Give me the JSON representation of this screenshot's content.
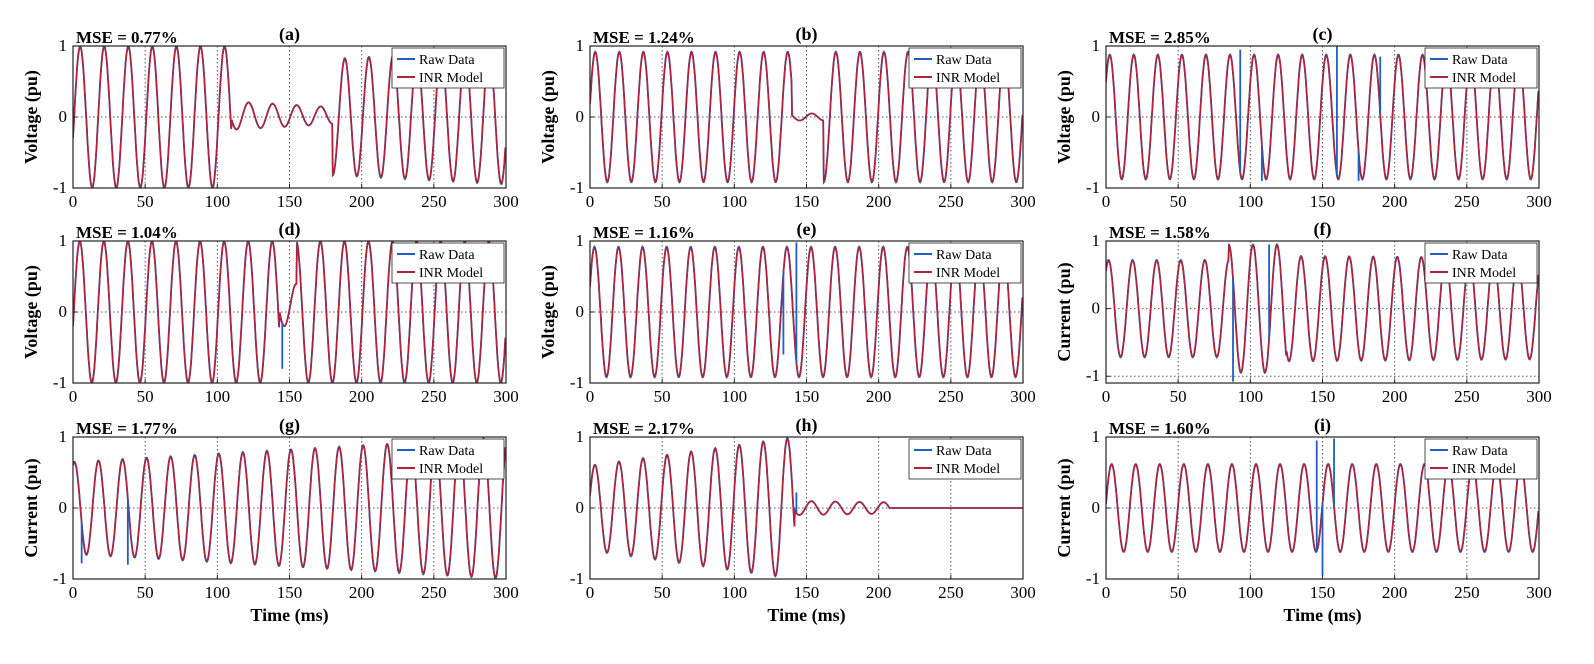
{
  "figure": {
    "xlabel": "Time (ms)",
    "legend": [
      "Raw Data",
      "INR Model"
    ],
    "colors": {
      "raw": "#1f5fbf",
      "model": "#b0233a",
      "grid": "#555555",
      "axis": "#222222"
    }
  },
  "chart_data": [
    {
      "type": "line",
      "id": "a",
      "title": "(a)",
      "annotation": "MSE = 0.77%",
      "ylabel": "Voltage (pu)",
      "xlabel": "",
      "xlim": [
        0,
        300
      ],
      "ylim": [
        -1,
        1
      ],
      "xticks": [
        "0",
        "50",
        "100",
        "150",
        "200",
        "250",
        "300"
      ],
      "yticks": [
        "-1",
        "0",
        "1"
      ],
      "legend": [
        "Raw Data",
        "INR Model"
      ],
      "legend_loc": "top-right",
      "grid": true,
      "series": [
        {
          "name": "Raw Data",
          "segments": [
            {
              "t0": 0,
              "t1": 110,
              "amp0": 1.0,
              "amp1": 1.0,
              "off": 0
            },
            {
              "t0": 110,
              "t1": 180,
              "amp0": 0.2,
              "amp1": 0.12,
              "off": 0.02
            },
            {
              "t0": 180,
              "t1": 300,
              "amp0": 0.82,
              "amp1": 0.95,
              "off": 0
            }
          ],
          "period": 16.67,
          "phase": -0.3,
          "spikes": []
        },
        {
          "name": "INR Model"
        }
      ]
    },
    {
      "type": "line",
      "id": "b",
      "title": "(b)",
      "annotation": "MSE = 1.24%",
      "ylabel": "Voltage (pu)",
      "xlabel": "",
      "xlim": [
        0,
        300
      ],
      "ylim": [
        -1,
        1
      ],
      "xticks": [
        "0",
        "50",
        "100",
        "150",
        "200",
        "250",
        "300"
      ],
      "yticks": [
        "-1",
        "0",
        "1"
      ],
      "legend": [
        "Raw Data",
        "INR Model"
      ],
      "legend_loc": "top-right",
      "grid": true,
      "series": [
        {
          "name": "Raw Data",
          "segments": [
            {
              "t0": 0,
              "t1": 140,
              "amp0": 0.92,
              "amp1": 0.92,
              "off": 0
            },
            {
              "t0": 140,
              "t1": 162,
              "amp0": 0.05,
              "amp1": 0.05,
              "off": 0.0
            },
            {
              "t0": 162,
              "t1": 300,
              "amp0": 0.92,
              "amp1": 0.92,
              "off": 0
            }
          ],
          "period": 16.67,
          "phase": 0.2,
          "spikes": []
        },
        {
          "name": "INR Model"
        }
      ]
    },
    {
      "type": "line",
      "id": "c",
      "title": "(c)",
      "annotation": "MSE = 2.85%",
      "ylabel": "Voltage (pu)",
      "xlabel": "",
      "xlim": [
        0,
        300
      ],
      "ylim": [
        -1,
        1
      ],
      "xticks": [
        "0",
        "50",
        "100",
        "150",
        "200",
        "250",
        "300"
      ],
      "yticks": [
        "-1",
        "0",
        "1"
      ],
      "legend": [
        "Raw Data",
        "INR Model"
      ],
      "legend_loc": "top-right",
      "grid": true,
      "series": [
        {
          "name": "Raw Data",
          "segments": [
            {
              "t0": 0,
              "t1": 300,
              "amp0": 0.88,
              "amp1": 0.88,
              "off": 0
            }
          ],
          "period": 16.67,
          "phase": 0.6,
          "spikes": [
            [
              93,
              0.95
            ],
            [
              108,
              -0.9
            ],
            [
              160,
              1.0
            ],
            [
              175,
              -0.9
            ],
            [
              190,
              0.85
            ]
          ]
        },
        {
          "name": "INR Model"
        }
      ]
    },
    {
      "type": "line",
      "id": "d",
      "title": "(d)",
      "annotation": "MSE = 1.04%",
      "ylabel": "Voltage (pu)",
      "xlabel": "",
      "xlim": [
        0,
        300
      ],
      "ylim": [
        -1,
        1
      ],
      "xticks": [
        "0",
        "50",
        "100",
        "150",
        "200",
        "250",
        "300"
      ],
      "yticks": [
        "-1",
        "0",
        "1"
      ],
      "legend": [
        "Raw Data",
        "INR Model"
      ],
      "legend_loc": "top-right",
      "grid": true,
      "series": [
        {
          "name": "Raw Data",
          "segments": [
            {
              "t0": 0,
              "t1": 143,
              "amp0": 1.0,
              "amp1": 1.0,
              "off": 0
            },
            {
              "t0": 143,
              "t1": 155,
              "amp0": 0.3,
              "amp1": 0.3,
              "off": 0.1
            },
            {
              "t0": 155,
              "t1": 300,
              "amp0": 1.0,
              "amp1": 1.0,
              "off": 0
            }
          ],
          "period": 16.67,
          "phase": -0.2,
          "spikes": [
            [
              145,
              -0.8
            ]
          ]
        },
        {
          "name": "INR Model"
        }
      ]
    },
    {
      "type": "line",
      "id": "e",
      "title": "(e)",
      "annotation": "MSE = 1.16%",
      "ylabel": "Voltage (pu)",
      "xlabel": "",
      "xlim": [
        0,
        300
      ],
      "ylim": [
        -1,
        1
      ],
      "xticks": [
        "0",
        "50",
        "100",
        "150",
        "200",
        "250",
        "300"
      ],
      "yticks": [
        "-1",
        "0",
        "1"
      ],
      "legend": [
        "Raw Data",
        "INR Model"
      ],
      "legend_loc": "top-right",
      "grid": true,
      "series": [
        {
          "name": "Raw Data",
          "segments": [
            {
              "t0": 0,
              "t1": 300,
              "amp0": 0.92,
              "amp1": 0.92,
              "off": 0
            }
          ],
          "period": 16.67,
          "phase": 0.4,
          "spikes": [
            [
              143,
              0.98
            ],
            [
              134,
              -0.6
            ]
          ]
        },
        {
          "name": "INR Model"
        }
      ]
    },
    {
      "type": "line",
      "id": "f",
      "title": "(f)",
      "annotation": "MSE = 1.58%",
      "ylabel": "Current (pu)",
      "xlabel": "",
      "xlim": [
        0,
        300
      ],
      "ylim": [
        -1.1,
        1
      ],
      "xticks": [
        "0",
        "50",
        "100",
        "150",
        "200",
        "250",
        "300"
      ],
      "yticks": [
        "-1",
        "0",
        "1"
      ],
      "legend": [
        "Raw Data",
        "INR Model"
      ],
      "legend_loc": "top-right",
      "grid": true,
      "series": [
        {
          "name": "Raw Data",
          "segments": [
            {
              "t0": 0,
              "t1": 85,
              "amp0": 0.72,
              "amp1": 0.72,
              "off": 0
            },
            {
              "t0": 85,
              "t1": 125,
              "amp0": 0.95,
              "amp1": 0.95,
              "off": 0
            },
            {
              "t0": 125,
              "t1": 300,
              "amp0": 0.78,
              "amp1": 0.75,
              "off": 0
            }
          ],
          "period": 16.67,
          "phase": 0.9,
          "spikes": [
            [
              88,
              -1.08
            ],
            [
              113,
              0.95
            ]
          ]
        },
        {
          "name": "INR Model"
        }
      ]
    },
    {
      "type": "line",
      "id": "g",
      "title": "(g)",
      "annotation": "MSE = 1.77%",
      "ylabel": "Current (pu)",
      "xlabel": "Time (ms)",
      "xlim": [
        0,
        300
      ],
      "ylim": [
        -1,
        1
      ],
      "xticks": [
        "0",
        "50",
        "100",
        "150",
        "200",
        "250",
        "300"
      ],
      "yticks": [
        "-1",
        "0",
        "1"
      ],
      "legend": [
        "Raw Data",
        "INR Model"
      ],
      "legend_loc": "top-right",
      "grid": true,
      "series": [
        {
          "name": "Raw Data",
          "segments": [
            {
              "t0": 0,
              "t1": 300,
              "amp0": 0.65,
              "amp1": 1.0,
              "off": 0
            }
          ],
          "period": 16.67,
          "phase": 1.2,
          "spikes": [
            [
              6,
              -0.78
            ],
            [
              38,
              -0.8
            ]
          ]
        },
        {
          "name": "INR Model"
        }
      ]
    },
    {
      "type": "line",
      "id": "h",
      "title": "(h)",
      "annotation": "MSE = 2.17%",
      "ylabel": "",
      "xlabel": "Time (ms)",
      "xlim": [
        0,
        300
      ],
      "ylim": [
        -1,
        1
      ],
      "xticks": [
        "0",
        "50",
        "100",
        "150",
        "200",
        "250",
        "300"
      ],
      "yticks": [
        "-1",
        "0",
        "1"
      ],
      "legend": [
        "Raw Data",
        "INR Model"
      ],
      "legend_loc": "top-right",
      "grid": true,
      "series": [
        {
          "name": "Raw Data",
          "segments": [
            {
              "t0": 0,
              "t1": 142,
              "amp0": 0.6,
              "amp1": 1.0,
              "off": 0
            },
            {
              "t0": 142,
              "t1": 208,
              "amp0": 0.1,
              "amp1": 0.08,
              "off": 0
            },
            {
              "t0": 208,
              "t1": 300,
              "amp0": 0.0,
              "amp1": 0.0,
              "off": 0
            }
          ],
          "period": 16.67,
          "phase": 0.3,
          "spikes": [
            [
              143,
              0.22
            ]
          ]
        },
        {
          "name": "INR Model"
        }
      ]
    },
    {
      "type": "line",
      "id": "i",
      "title": "(i)",
      "annotation": "MSE = 1.60%",
      "ylabel": "Current (pu)",
      "xlabel": "Time (ms)",
      "xlim": [
        0,
        300
      ],
      "ylim": [
        -1,
        1
      ],
      "xticks": [
        "0",
        "50",
        "100",
        "150",
        "200",
        "250",
        "300"
      ],
      "yticks": [
        "-1",
        "0",
        "1"
      ],
      "legend": [
        "Raw Data",
        "INR Model"
      ],
      "legend_loc": "top-right",
      "grid": true,
      "series": [
        {
          "name": "Raw Data",
          "segments": [
            {
              "t0": 0,
              "t1": 300,
              "amp0": 0.62,
              "amp1": 0.62,
              "off": 0
            }
          ],
          "period": 16.67,
          "phase": 0.1,
          "spikes": [
            [
              146,
              0.95
            ],
            [
              150,
              -0.95
            ],
            [
              158,
              0.98
            ]
          ]
        },
        {
          "name": "INR Model"
        }
      ]
    }
  ]
}
